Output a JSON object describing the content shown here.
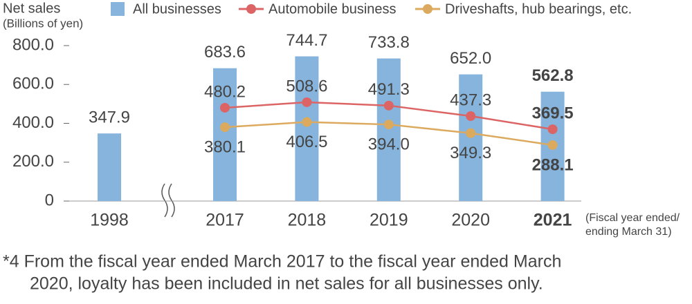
{
  "chart_data": {
    "type": "bar",
    "y_label": [
      "Net sales",
      "(Billions of yen)"
    ],
    "x_note": [
      "(Fiscal year ended/",
      "ending March 31)"
    ],
    "categories": [
      "1998",
      "2017",
      "2018",
      "2019",
      "2020",
      "2021"
    ],
    "series": [
      {
        "name": "All businesses",
        "type": "bar",
        "color": "#86b4dc",
        "values": [
          347.9,
          683.6,
          744.7,
          733.8,
          652.0,
          562.8
        ],
        "value_labels": [
          "347.9",
          "683.6",
          "744.7",
          "733.8",
          "652.0",
          "562.8"
        ]
      },
      {
        "name": "Automobile business",
        "type": "line",
        "color": "#dc6464",
        "values": [
          null,
          480.2,
          508.6,
          491.3,
          437.3,
          369.5
        ],
        "value_labels": [
          null,
          "480.2",
          "508.6",
          "491.3",
          "437.3",
          "369.5"
        ]
      },
      {
        "name": "Driveshafts, hub bearings, etc.",
        "type": "line",
        "color": "#dcaa5f",
        "values": [
          null,
          380.1,
          406.5,
          394.0,
          349.3,
          288.1
        ],
        "value_labels": [
          null,
          "380.1",
          "406.5",
          "394.0",
          "349.3",
          "288.1"
        ]
      }
    ],
    "ylim": [
      0,
      800
    ],
    "yticks": [
      0,
      {
        "value": 200,
        "label": "200.0"
      },
      {
        "value": 400,
        "label": "400.0"
      },
      {
        "value": 600,
        "label": "600.0"
      },
      {
        "value": 800,
        "label": "800.0"
      }
    ],
    "footnote": [
      "*4 From the fiscal year ended March 2017 to the fiscal year ended March",
      "2020, loyalty has been included in net sales for all businesses only."
    ]
  }
}
